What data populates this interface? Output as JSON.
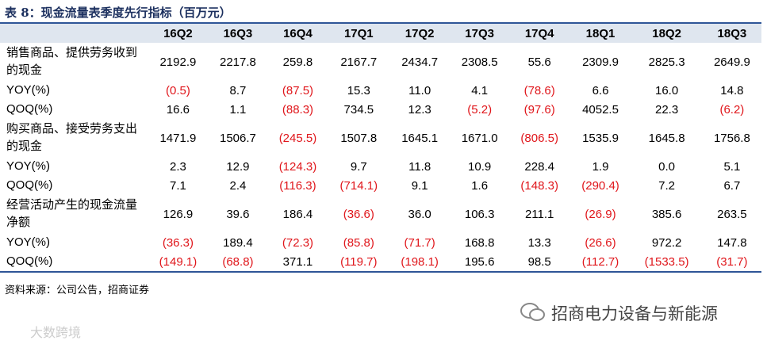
{
  "header": {
    "title": "表 8：现金流量表季度先行指标（百万元）"
  },
  "table": {
    "columns": [
      "16Q2",
      "16Q3",
      "16Q4",
      "17Q1",
      "17Q2",
      "17Q3",
      "17Q4",
      "18Q1",
      "18Q2",
      "18Q3"
    ],
    "rows": [
      {
        "label": "销售商品、提供劳务收到的现金",
        "values": [
          "2192.9",
          "2217.8",
          "259.8",
          "2167.7",
          "2434.7",
          "2308.5",
          "55.6",
          "2309.9",
          "2825.3",
          "2649.9"
        ]
      },
      {
        "label": "YOY(%)",
        "values": [
          "(0.5)",
          "8.7",
          "(87.5)",
          "15.3",
          "11.0",
          "4.1",
          "(78.6)",
          "6.6",
          "16.0",
          "14.8"
        ]
      },
      {
        "label": "QOQ(%)",
        "values": [
          "16.6",
          "1.1",
          "(88.3)",
          "734.5",
          "12.3",
          "(5.2)",
          "(97.6)",
          "4052.5",
          "22.3",
          "(6.2)"
        ]
      },
      {
        "label": "购买商品、接受劳务支出的现金",
        "values": [
          "1471.9",
          "1506.7",
          "(245.5)",
          "1507.8",
          "1645.1",
          "1671.0",
          "(806.5)",
          "1535.9",
          "1645.8",
          "1756.8"
        ]
      },
      {
        "label": "YOY(%)",
        "values": [
          "2.3",
          "12.9",
          "(124.3)",
          "9.7",
          "11.8",
          "10.9",
          "228.4",
          "1.9",
          "0.0",
          "5.1"
        ]
      },
      {
        "label": "QOQ(%)",
        "values": [
          "7.1",
          "2.4",
          "(116.3)",
          "(714.1)",
          "9.1",
          "1.6",
          "(148.3)",
          "(290.4)",
          "7.2",
          "6.7"
        ]
      },
      {
        "label": "经营活动产生的现金流量净额",
        "values": [
          "126.9",
          "39.6",
          "186.4",
          "(36.6)",
          "36.0",
          "106.3",
          "211.1",
          "(26.9)",
          "385.6",
          "263.5"
        ]
      },
      {
        "label": "YOY(%)",
        "values": [
          "(36.3)",
          "189.4",
          "(72.3)",
          "(85.8)",
          "(71.7)",
          "168.8",
          "13.3",
          "(26.6)",
          "972.2",
          "147.8"
        ]
      },
      {
        "label": "QOQ(%)",
        "values": [
          "(149.1)",
          "(68.8)",
          "371.1",
          "(119.7)",
          "(198.1)",
          "195.6",
          "98.5",
          "(112.7)",
          "(1533.5)",
          "(31.7)"
        ]
      }
    ]
  },
  "footer": {
    "source": "资料来源：公司公告，招商证券"
  },
  "watermark": {
    "brand": "招商电力设备与新能源",
    "corner": "大数跨境"
  }
}
